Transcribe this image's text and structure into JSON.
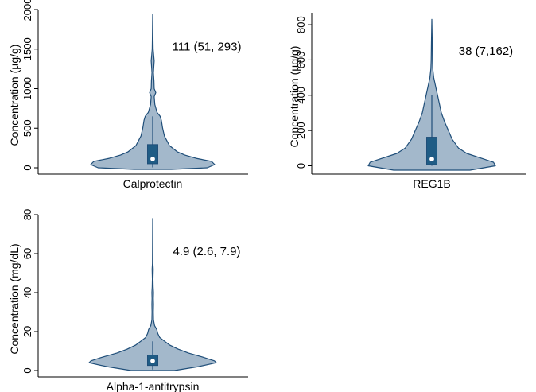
{
  "colors": {
    "violin_fill": "#a3b8cb",
    "violin_stroke": "#1f4e79",
    "box_fill": "#1f5c85",
    "median_dot": "#ffffff"
  },
  "chart_data": [
    {
      "type": "violin",
      "xlabel": "Calprotectin",
      "ylabel": "Concentration (µg/g)",
      "ylim": [
        0,
        2000
      ],
      "yticks": [
        0,
        500,
        1000,
        1500,
        2000
      ],
      "annotation": "111 (51, 293)",
      "median": 111,
      "q1": 51,
      "q3": 293,
      "whisker_low": 5,
      "whisker_high": 650,
      "min": -20,
      "max": 1940,
      "density": [
        [
          -20,
          0.3
        ],
        [
          0,
          0.88
        ],
        [
          40,
          1.0
        ],
        [
          80,
          0.95
        ],
        [
          120,
          0.7
        ],
        [
          160,
          0.52
        ],
        [
          200,
          0.4
        ],
        [
          280,
          0.27
        ],
        [
          400,
          0.19
        ],
        [
          500,
          0.16
        ],
        [
          600,
          0.14
        ],
        [
          650,
          0.12
        ],
        [
          700,
          0.07
        ],
        [
          800,
          0.035
        ],
        [
          900,
          0.025
        ],
        [
          950,
          0.05
        ],
        [
          1000,
          0.025
        ],
        [
          1100,
          0.02
        ],
        [
          1200,
          0.012
        ],
        [
          1350,
          0.025
        ],
        [
          1500,
          0.008
        ],
        [
          1700,
          0.004
        ],
        [
          1940,
          0.0
        ]
      ]
    },
    {
      "type": "violin",
      "xlabel": "REG1B",
      "ylabel": "Concentration (µg/g)",
      "ylim": [
        0,
        850
      ],
      "yticks": [
        0,
        200,
        400,
        600,
        800
      ],
      "annotation": "38 (7,162)",
      "median": 38,
      "q1": 7,
      "q3": 162,
      "whisker_low": 0,
      "whisker_high": 400,
      "min": -25,
      "max": 830,
      "density": [
        [
          -25,
          0.6
        ],
        [
          0,
          1.0
        ],
        [
          20,
          0.97
        ],
        [
          40,
          0.8
        ],
        [
          70,
          0.55
        ],
        [
          100,
          0.42
        ],
        [
          150,
          0.32
        ],
        [
          200,
          0.26
        ],
        [
          250,
          0.2
        ],
        [
          300,
          0.15
        ],
        [
          350,
          0.12
        ],
        [
          400,
          0.09
        ],
        [
          450,
          0.06
        ],
        [
          500,
          0.03
        ],
        [
          550,
          0.015
        ],
        [
          600,
          0.01
        ],
        [
          700,
          0.006
        ],
        [
          830,
          0.0
        ]
      ]
    },
    {
      "type": "violin",
      "xlabel": "Alpha-1-antitrypsin",
      "ylabel": "Concentration (mg/dL)",
      "ylim": [
        0,
        80
      ],
      "yticks": [
        0,
        20,
        40,
        60,
        80
      ],
      "annotation": "4.9 (2.6, 7.9)",
      "median": 4.9,
      "q1": 2.6,
      "q3": 7.9,
      "whisker_low": 0.5,
      "whisker_high": 15,
      "min": 0,
      "max": 78,
      "density": [
        [
          0,
          0.34
        ],
        [
          2,
          0.72
        ],
        [
          4,
          1.0
        ],
        [
          5,
          0.97
        ],
        [
          7,
          0.78
        ],
        [
          9,
          0.56
        ],
        [
          11,
          0.4
        ],
        [
          13,
          0.27
        ],
        [
          15,
          0.19
        ],
        [
          17,
          0.11
        ],
        [
          19,
          0.08
        ],
        [
          21,
          0.065
        ],
        [
          23,
          0.03
        ],
        [
          26,
          0.012
        ],
        [
          30,
          0.01
        ],
        [
          34,
          0.013
        ],
        [
          37,
          0.01
        ],
        [
          40,
          0.013
        ],
        [
          43,
          0.008
        ],
        [
          47,
          0.005
        ],
        [
          52,
          0.009
        ],
        [
          55,
          0.004
        ],
        [
          62,
          0.002
        ],
        [
          70,
          0.001
        ],
        [
          78,
          0.0
        ]
      ]
    }
  ]
}
